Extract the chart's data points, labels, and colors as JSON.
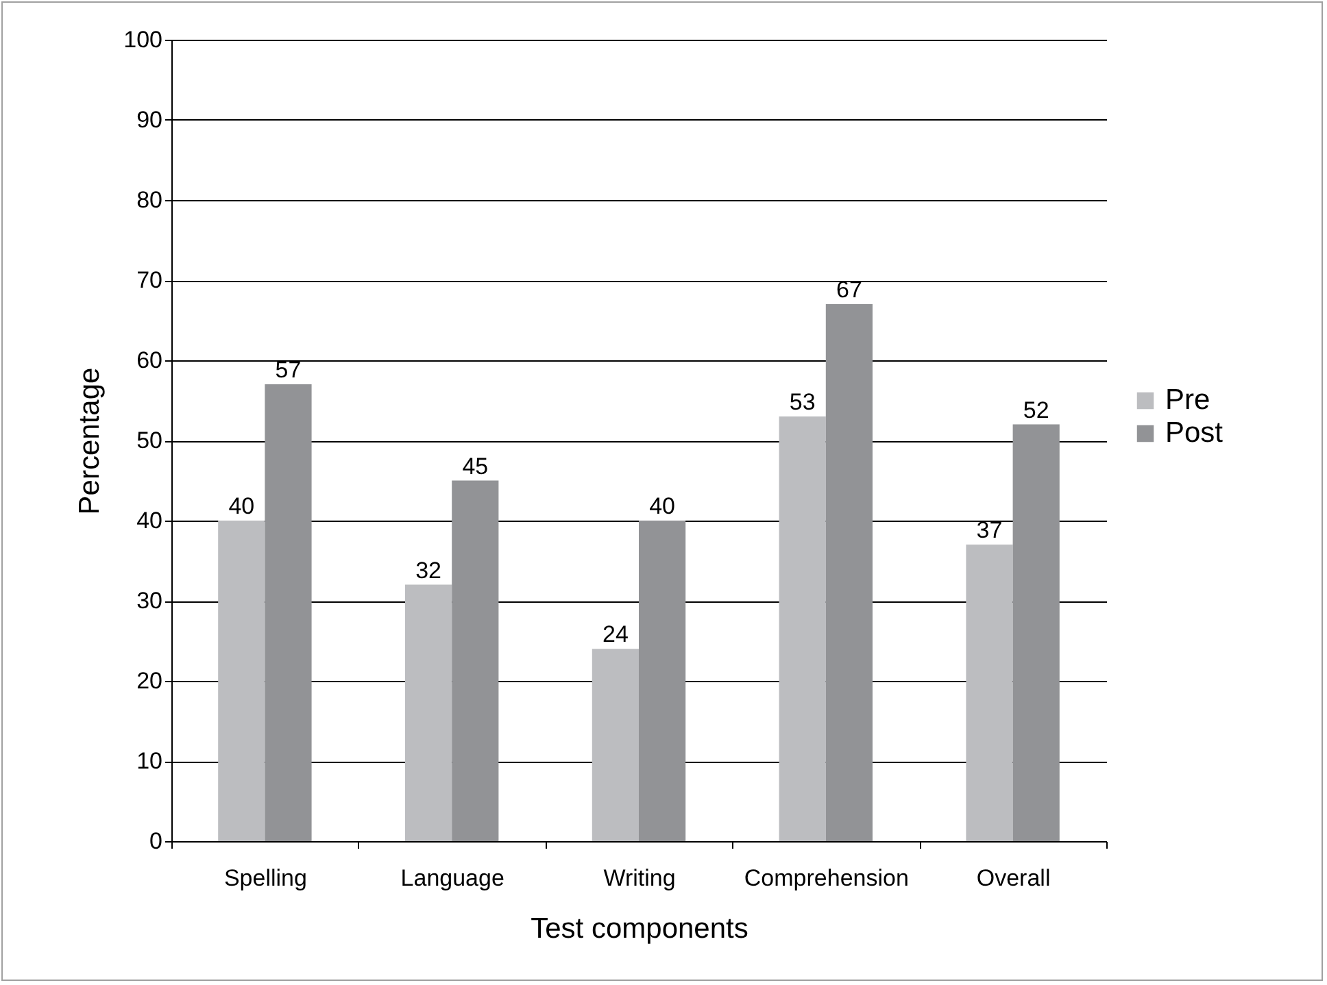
{
  "chart_data": {
    "type": "bar",
    "xlabel": "Test components",
    "ylabel": "Percentage",
    "categories": [
      "Spelling",
      "Language",
      "Writing",
      "Comprehension",
      "Overall"
    ],
    "series": [
      {
        "name": "Pre",
        "color": "#bcbdc0",
        "values": [
          40,
          32,
          24,
          53,
          37
        ]
      },
      {
        "name": "Post",
        "color": "#929396",
        "values": [
          57,
          45,
          40,
          67,
          52
        ]
      }
    ],
    "ylim": [
      0,
      100
    ],
    "yticks": [
      0,
      10,
      20,
      30,
      40,
      50,
      60,
      70,
      80,
      90,
      100
    ],
    "grid": "y",
    "legend": "right",
    "data_labels": true
  }
}
